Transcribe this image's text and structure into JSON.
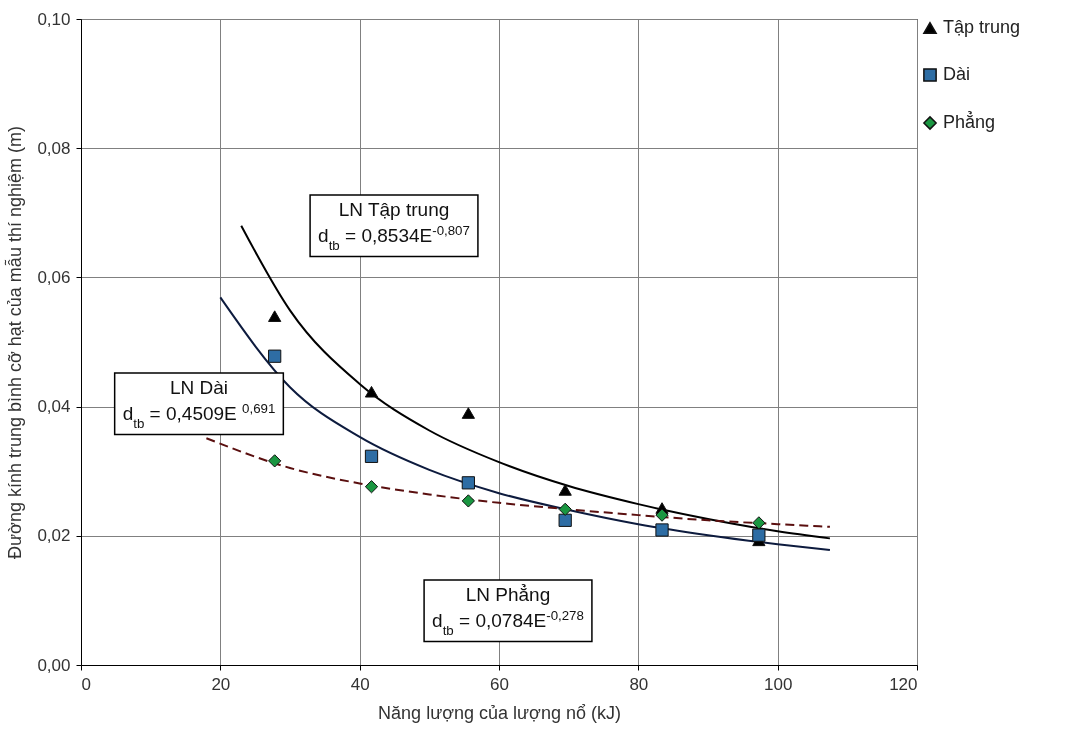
{
  "chart_data": {
    "type": "scatter",
    "xlabel": "Năng lượng của lượng nổ (kJ)",
    "ylabel": "Đường kính trung bình cỡ hạt của mẫu thí nghiệm (m)",
    "x": [
      27.8,
      41.7,
      55.6,
      69.5,
      83.4,
      97.3
    ],
    "series": [
      {
        "name": "Tập trung",
        "color": "#000000",
        "marker": "triangle",
        "values": [
          0.054,
          0.0423,
          0.039,
          0.0271,
          0.0243,
          0.0193
        ]
      },
      {
        "name": "Dài",
        "color": "#2e6da4",
        "marker": "square",
        "values": [
          0.0478,
          0.0323,
          0.0282,
          0.0224,
          0.0209,
          0.0201
        ]
      },
      {
        "name": "Phẳng",
        "color": "#1a9641",
        "marker": "diamond",
        "values": [
          0.0316,
          0.0276,
          0.0254,
          0.0241,
          0.0232,
          0.022
        ]
      },
      {
        "type": "line",
        "color": "#000000",
        "line_style": "solid",
        "x": [
          23,
          30,
          40,
          50,
          60,
          70,
          80,
          90,
          100,
          107.5
        ],
        "values": [
          0.068,
          0.0549,
          0.0435,
          0.0363,
          0.0314,
          0.0277,
          0.0249,
          0.0226,
          0.0207,
          0.0196
        ]
      },
      {
        "type": "line",
        "color": "#0d1b3e",
        "line_style": "solid",
        "x": [
          20,
          30,
          40,
          50,
          60,
          70,
          80,
          90,
          100,
          107.5
        ],
        "values": [
          0.0569,
          0.043,
          0.0353,
          0.0302,
          0.0266,
          0.024,
          0.0218,
          0.0201,
          0.0187,
          0.0178
        ]
      },
      {
        "type": "line",
        "color": "#5a0f0f",
        "line_style": "dashed",
        "x": [
          18,
          30,
          40,
          50,
          60,
          70,
          80,
          90,
          100,
          107.5
        ],
        "values": [
          0.0351,
          0.0305,
          0.0281,
          0.0264,
          0.0251,
          0.0241,
          0.0232,
          0.0224,
          0.0218,
          0.0214
        ]
      }
    ],
    "xlim": [
      0,
      120
    ],
    "xticks": [
      0,
      20,
      40,
      60,
      80,
      100,
      120
    ],
    "ylim": [
      0,
      0.1
    ],
    "yticks": [
      {
        "value": 0,
        "label": "0,00"
      },
      {
        "value": 0.02,
        "label": "0,02"
      },
      {
        "value": 0.04,
        "label": "0,04"
      },
      {
        "value": 0.06,
        "label": "0,06"
      },
      {
        "value": 0.08,
        "label": "0,08"
      },
      {
        "value": 0.1,
        "label": "0,10"
      }
    ],
    "grid": true,
    "legend": "right",
    "annotations": [
      "LN Tập trung\nd$_{tb}$ = 0,8534E$^{-0,807}$",
      "LN Dài\nd$_{tb}$  = 0,4509E $^{0,691}$",
      "LN Phẳng\nd$_{tb}$  = 0,0784E$^{-0,278}$"
    ]
  }
}
